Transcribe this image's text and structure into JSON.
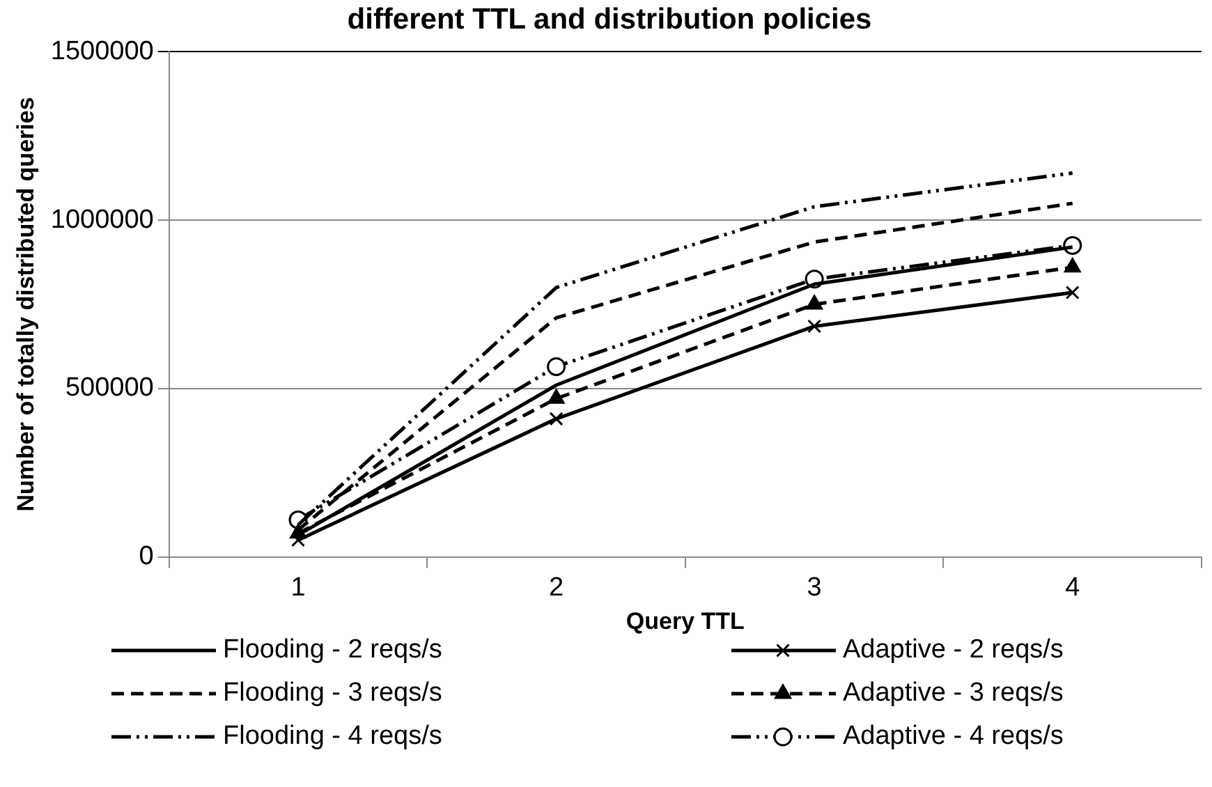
{
  "chart_data": {
    "type": "line",
    "title": "different TTL and distribution policies",
    "xlabel": "Query TTL",
    "ylabel": "Number of totally distributed queries",
    "categories": [
      "1",
      "2",
      "3",
      "4"
    ],
    "ylim": [
      0,
      1500000
    ],
    "yticks": [
      0,
      500000,
      1000000,
      1500000
    ],
    "grid": "y",
    "legend": "bottom",
    "series": [
      {
        "name": "Flooding - 2 reqs/s",
        "color": "#000000",
        "line_style": "solid",
        "marker": "none",
        "values": [
          65000,
          510000,
          810000,
          920000
        ]
      },
      {
        "name": "Flooding - 3 reqs/s",
        "color": "#000000",
        "line_style": "dashed",
        "marker": "none",
        "values": [
          80000,
          710000,
          935000,
          1050000
        ]
      },
      {
        "name": "Flooding - 4 reqs/s",
        "color": "#000000",
        "line_style": "dotted",
        "marker": "none",
        "values": [
          95000,
          800000,
          1040000,
          1140000
        ]
      },
      {
        "name": "Adaptive - 2 reqs/s",
        "color": "#000000",
        "line_style": "solid",
        "marker": "cross",
        "values": [
          50000,
          410000,
          685000,
          785000
        ]
      },
      {
        "name": "Adaptive - 3 reqs/s",
        "color": "#000000",
        "line_style": "dashed",
        "marker": "triangle",
        "values": [
          70000,
          470000,
          750000,
          860000
        ]
      },
      {
        "name": "Adaptive - 4 reqs/s",
        "color": "#000000",
        "line_style": "dotted",
        "marker": "circle",
        "values": [
          110000,
          565000,
          825000,
          925000
        ]
      }
    ]
  }
}
